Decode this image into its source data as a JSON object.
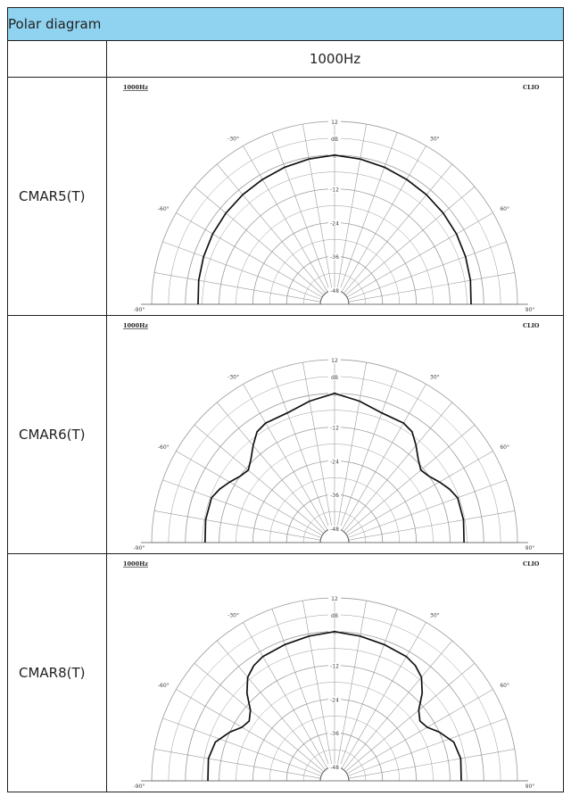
{
  "table": {
    "header": "Polar diagram",
    "frequency": "1000Hz"
  },
  "chart_data": [
    {
      "type": "polar",
      "model": "CMAR5(T)",
      "corner_left": "1000Hz",
      "corner_right": "CLIO",
      "r_unit": "dB",
      "r_ticks": [
        "12",
        "0",
        "-12",
        "-24",
        "-36",
        "-48"
      ],
      "r_range": [
        -48,
        12
      ],
      "angle_ticks": [
        "-90°",
        "-60°",
        "-30°",
        "30°",
        "60°",
        "90°"
      ],
      "angle_range": [
        -90,
        90
      ],
      "series": [
        {
          "angles": [
            -90,
            -80,
            -70,
            -60,
            -50,
            -40,
            -30,
            -20,
            -10,
            0,
            10,
            20,
            30,
            40,
            50,
            60,
            70,
            80,
            90
          ],
          "values": [
            -4.5,
            -4,
            -3.5,
            -3,
            -2.6,
            -2.2,
            -1.8,
            -1.2,
            -0.6,
            0,
            -0.6,
            -1.2,
            -1.8,
            -2.2,
            -2.6,
            -3,
            -3.5,
            -4,
            -4.5
          ]
        }
      ]
    },
    {
      "type": "polar",
      "model": "CMAR6(T)",
      "corner_left": "1000Hz",
      "corner_right": "CLIO",
      "r_unit": "dB",
      "r_ticks": [
        "12",
        "0",
        "-12",
        "-24",
        "-36",
        "-48"
      ],
      "r_range": [
        -48,
        12
      ],
      "angle_ticks": [
        "-90°",
        "-60°",
        "-30°",
        "30°",
        "60°",
        "90°"
      ],
      "angle_range": [
        -90,
        90
      ],
      "series": [
        {
          "angles": [
            -90,
            -80,
            -70,
            -65,
            -60,
            -55,
            -50,
            -45,
            -40,
            -35,
            -30,
            -20,
            -10,
            0,
            10,
            20,
            30,
            35,
            40,
            45,
            50,
            55,
            60,
            65,
            70,
            80,
            90
          ],
          "values": [
            -7,
            -6.5,
            -6.5,
            -8,
            -10,
            -12,
            -13,
            -11,
            -8,
            -5,
            -4,
            -4,
            -2,
            0,
            -2,
            -4,
            -4,
            -5,
            -8,
            -11,
            -13,
            -12,
            -10,
            -8,
            -6.5,
            -6.5,
            -7
          ]
        }
      ]
    },
    {
      "type": "polar",
      "model": "CMAR8(T)",
      "corner_left": "1000Hz",
      "corner_right": "CLIO",
      "r_unit": "dB",
      "r_ticks": [
        "12",
        "0",
        "-12",
        "-24",
        "-36",
        "-48"
      ],
      "r_range": [
        -48,
        12
      ],
      "angle_ticks": [
        "-90°",
        "-60°",
        "-30°",
        "30°",
        "60°",
        "90°"
      ],
      "angle_range": [
        -90,
        90
      ],
      "series": [
        {
          "angles": [
            -90,
            -80,
            -72,
            -65,
            -60,
            -55,
            -50,
            -45,
            -40,
            -35,
            -30,
            -20,
            -10,
            0,
            10,
            20,
            30,
            35,
            40,
            45,
            50,
            55,
            60,
            65,
            72,
            80,
            90
          ],
          "values": [
            -8,
            -7.5,
            -8.5,
            -12,
            -15,
            -16,
            -14,
            -9,
            -5,
            -3,
            -2,
            -1.5,
            -0.8,
            0,
            -0.8,
            -1.5,
            -2,
            -3,
            -5,
            -9,
            -14,
            -16,
            -15,
            -12,
            -8.5,
            -7.5,
            -8
          ]
        }
      ]
    }
  ]
}
